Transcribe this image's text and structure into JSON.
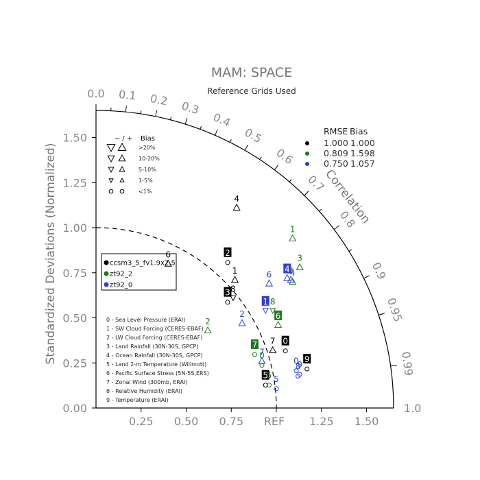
{
  "chart_data": {
    "type": "scatter",
    "title": "MAM: SPACE",
    "subtitle": "Reference Grids Used",
    "ylabel": "Standardized Deviations (Normalized)",
    "xlabel": "",
    "correlation_label": "Correlation",
    "ref_label": "REF",
    "x_ticks": [
      "0.25",
      "0.50",
      "0.75",
      "1.25",
      "1.50"
    ],
    "y_ticks": [
      "0.00",
      "0.25",
      "0.50",
      "0.75",
      "1.00",
      "1.25",
      "1.50"
    ],
    "right_axis_end_label": "1.0",
    "correlation_ticks": [
      "0.0",
      "0.1",
      "0.2",
      "0.3",
      "0.4",
      "0.5",
      "0.6",
      "0.7",
      "0.8",
      "0.9",
      "0.95",
      "0.99"
    ],
    "colors": {
      "black": "#000000",
      "green": "#1a7a1a",
      "blue": "#2b3fe0",
      "axis": "#888888"
    },
    "series": [
      {
        "name": "ccsm3_5_fv1.9x2.5",
        "color": "#000000",
        "rmse": "1.000",
        "bias": "1.000",
        "points": [
          {
            "label": "0",
            "x": 1.05,
            "y": 0.37,
            "marker": "square",
            "bias_symbol": "circle"
          },
          {
            "label": "1",
            "x": 0.77,
            "y": 0.76,
            "marker": "text",
            "bias_symbol": "triangle_up"
          },
          {
            "label": "2",
            "x": 0.73,
            "y": 0.86,
            "marker": "square",
            "bias_symbol": "circle"
          },
          {
            "label": "3",
            "x": 0.73,
            "y": 0.64,
            "marker": "square",
            "bias_symbol": "circle"
          },
          {
            "label": "4",
            "x": 0.78,
            "y": 1.16,
            "marker": "text",
            "bias_symbol": "triangle_up"
          },
          {
            "label": "5",
            "x": 0.94,
            "y": 0.18,
            "marker": "square",
            "bias_symbol": "circle"
          },
          {
            "label": "6",
            "x": 0.4,
            "y": 0.85,
            "marker": "text",
            "bias_symbol": "triangle_up"
          },
          {
            "label": "7",
            "x": 0.98,
            "y": 0.37,
            "marker": "text",
            "bias_symbol": "triangle_up"
          },
          {
            "label": "8",
            "x": 0.76,
            "y": 0.66,
            "marker": "text",
            "bias_symbol": "triangle_down"
          },
          {
            "label": "9",
            "x": 1.17,
            "y": 0.27,
            "marker": "square",
            "bias_symbol": "circle"
          }
        ]
      },
      {
        "name": "zt92_2",
        "color": "#1a7a1a",
        "rmse": "0.809",
        "bias": "1.598",
        "points": [
          {
            "label": "0",
            "x": 0.92,
            "y": 0.29,
            "marker": "text",
            "bias_symbol": "circle"
          },
          {
            "label": "1",
            "x": 1.09,
            "y": 0.99,
            "marker": "text",
            "bias_symbol": "triangle_up"
          },
          {
            "label": "2",
            "x": 0.62,
            "y": 0.48,
            "marker": "text",
            "bias_symbol": "triangle_up"
          },
          {
            "label": "3",
            "x": 1.13,
            "y": 0.83,
            "marker": "text",
            "bias_symbol": "triangle_up"
          },
          {
            "label": "4",
            "x": 1.09,
            "y": 0.75,
            "marker": "text",
            "bias_symbol": "triangle_up"
          },
          {
            "label": "5",
            "x": 0.96,
            "y": 0.18,
            "marker": "text",
            "bias_symbol": "circle"
          },
          {
            "label": "6",
            "x": 1.01,
            "y": 0.51,
            "marker": "square",
            "bias_symbol": "triangle_up"
          },
          {
            "label": "7",
            "x": 0.88,
            "y": 0.35,
            "marker": "square",
            "bias_symbol": "circle"
          },
          {
            "label": "8",
            "x": 0.98,
            "y": 0.59,
            "marker": "text",
            "bias_symbol": "triangle_down"
          }
        ]
      },
      {
        "name": "zt92_0",
        "color": "#2b3fe0",
        "rmse": "0.750",
        "bias": "1.057",
        "points": [
          {
            "label": "0",
            "x": 1.11,
            "y": 0.26,
            "marker": "text",
            "bias_symbol": "circle"
          },
          {
            "label": "1",
            "x": 0.94,
            "y": 0.59,
            "marker": "square",
            "bias_symbol": "triangle_down"
          },
          {
            "label": "2",
            "x": 0.81,
            "y": 0.52,
            "marker": "text",
            "bias_symbol": "triangle_up"
          },
          {
            "label": "3",
            "x": 1.08,
            "y": 0.76,
            "marker": "text",
            "bias_symbol": "triangle_up"
          },
          {
            "label": "4",
            "x": 1.06,
            "y": 0.77,
            "marker": "square",
            "bias_symbol": "triangle_up"
          },
          {
            "label": "5",
            "x": 1.0,
            "y": 0.16,
            "marker": "text",
            "bias_symbol": "circle"
          },
          {
            "label": "6",
            "x": 0.96,
            "y": 0.74,
            "marker": "text",
            "bias_symbol": "triangle_up"
          },
          {
            "label": "7",
            "x": 0.92,
            "y": 0.31,
            "marker": "text",
            "bias_symbol": "triangle_up"
          },
          {
            "label": "8",
            "x": 1.12,
            "y": 0.23,
            "marker": "text",
            "bias_symbol": "circle"
          },
          {
            "label": "9",
            "x": 1.13,
            "y": 0.24,
            "marker": "text",
            "bias_symbol": "circle"
          }
        ]
      }
    ],
    "variables": [
      "0 - Sea Level Pressure (ERAI)",
      "1 - SW Cloud Forcing (CERES-EBAF)",
      "2 - LW Cloud Forcing (CERES-EBAF)",
      "3 - Land Rainfall (30N-30S, GPCP)",
      "4 - Ocean Rainfall (30N-30S, GPCP)",
      "5 - Land 2-m Temperature (Willmott)",
      "6 - Pacific Surface Stress (5N-5S,ERS)",
      "7 - Zonal Wind (300mb, ERAI)",
      "8 - Relative Humidity (ERAI)",
      "9 - Temperature (ERAI)"
    ],
    "bias_legend": {
      "header": [
        "−  /  +",
        "Bias"
      ],
      "rows": [
        ">20%",
        "10-20%",
        "5-10%",
        "1-5%",
        "<1%"
      ]
    },
    "stats_header": [
      "RMSE",
      "Bias"
    ]
  }
}
